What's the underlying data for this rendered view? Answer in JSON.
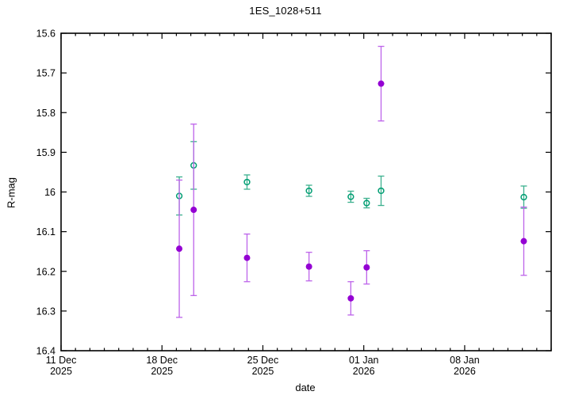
{
  "figure": {
    "kind": "gnuplot-style light curve plot",
    "background": "#ffffff",
    "border_color": "#000000"
  },
  "chart_data": {
    "type": "scatter",
    "title": "1ES_1028+511",
    "xlabel": "date",
    "ylabel": "R-mag",
    "grid": false,
    "legend": "none",
    "y_axis": {
      "min": 15.6,
      "max": 16.4,
      "inverted_display": true,
      "tick_step": 0.1,
      "tick_labels": [
        "15.6",
        "15.7",
        "15.8",
        "15.9",
        "16",
        "16.1",
        "16.2",
        "16.3",
        "16.4"
      ]
    },
    "x_axis": {
      "start": "11 Dec 2025",
      "end": "14 Jan 2026",
      "span_days": 34,
      "minor_tick_days": 1,
      "major_ticks": [
        {
          "day": 0,
          "line1": "11 Dec",
          "line2": "2025"
        },
        {
          "day": 7,
          "line1": "18 Dec",
          "line2": "2025"
        },
        {
          "day": 14,
          "line1": "25 Dec",
          "line2": "2025"
        },
        {
          "day": 21,
          "line1": "01 Jan",
          "line2": "2026"
        },
        {
          "day": 28,
          "line1": "08 Jan",
          "line2": "2026"
        }
      ]
    },
    "series": [
      {
        "name": "open-circle-series",
        "marker": "open-circle",
        "color": "#009e73",
        "errorbar_color": "#3cb08e",
        "points": [
          {
            "day": 8.2,
            "date": "19 Dec 2025",
            "mag": 16.01,
            "err": 0.048
          },
          {
            "day": 9.2,
            "date": "20 Dec 2025",
            "mag": 15.933,
            "err": 0.06
          },
          {
            "day": 12.9,
            "date": "24 Dec 2025",
            "mag": 15.975,
            "err": 0.018
          },
          {
            "day": 17.2,
            "date": "28 Dec 2025",
            "mag": 15.997,
            "err": 0.014
          },
          {
            "day": 20.1,
            "date": "31 Dec 2025",
            "mag": 16.012,
            "err": 0.014
          },
          {
            "day": 21.2,
            "date": "01 Jan 2026",
            "mag": 16.028,
            "err": 0.012
          },
          {
            "day": 22.2,
            "date": "02 Jan 2026",
            "mag": 15.997,
            "err": 0.037
          },
          {
            "day": 32.1,
            "date": "12 Jan 2026",
            "mag": 16.013,
            "err": 0.028
          }
        ]
      },
      {
        "name": "filled-circle-series",
        "marker": "filled-circle",
        "color": "#9400d3",
        "errorbar_color": "#bd63ea",
        "points": [
          {
            "day": 8.2,
            "date": "19 Dec 2025",
            "mag": 16.143,
            "err": 0.173
          },
          {
            "day": 9.2,
            "date": "20 Dec 2025",
            "mag": 16.045,
            "err": 0.216
          },
          {
            "day": 12.9,
            "date": "24 Dec 2025",
            "mag": 16.166,
            "err": 0.06
          },
          {
            "day": 17.2,
            "date": "28 Dec 2025",
            "mag": 16.188,
            "err": 0.036
          },
          {
            "day": 20.1,
            "date": "31 Dec 2025",
            "mag": 16.268,
            "err": 0.042
          },
          {
            "day": 21.2,
            "date": "01 Jan 2026",
            "mag": 16.19,
            "err": 0.042
          },
          {
            "day": 22.2,
            "date": "02 Jan 2026",
            "mag": 15.727,
            "err": 0.094
          },
          {
            "day": 32.1,
            "date": "12 Jan 2026",
            "mag": 16.124,
            "err": 0.086
          }
        ]
      }
    ]
  }
}
